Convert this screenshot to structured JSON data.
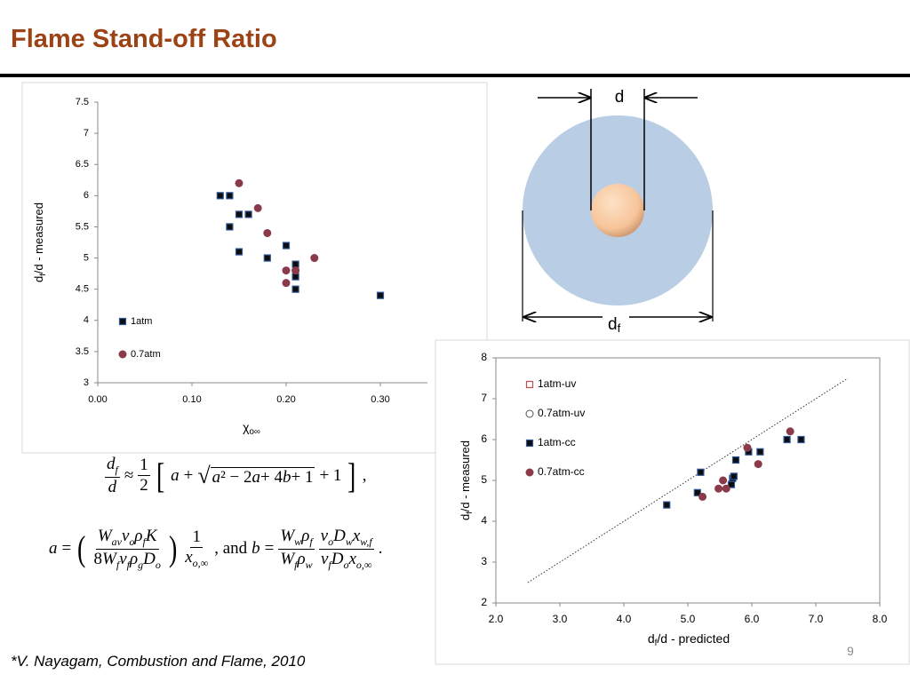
{
  "title": "Flame Stand-off Ratio",
  "footnote": "*V. Nayagam, Combustion and Flame, 2010",
  "page_number": "9",
  "diagram": {
    "d_label": "d",
    "df_label": [
      "d",
      "f"
    ]
  },
  "equations": [
    [
      {
        "frac": {
          "num": [
            {
              "v": "d",
              "s": "f"
            }
          ],
          "den": [
            {
              "v": "d"
            }
          ]
        }
      },
      {
        "t": "≈"
      },
      {
        "frac": {
          "num": [
            {
              "t": "1"
            }
          ],
          "den": [
            {
              "t": "2"
            }
          ]
        }
      },
      {
        "big": "["
      },
      {
        "v": "a"
      },
      {
        "t": "+"
      },
      {
        "sqrt": [
          {
            "v": "a"
          },
          {
            "t": "² − 2"
          },
          {
            "v": "a"
          },
          {
            "t": " + 4"
          },
          {
            "v": "b"
          },
          {
            "t": " + 1"
          }
        ]
      },
      {
        "t": "+ 1"
      },
      {
        "big": "]"
      },
      {
        "t": ","
      }
    ],
    [
      {
        "v": "a"
      },
      {
        "t": "="
      },
      {
        "big": "("
      },
      {
        "frac": {
          "num": [
            {
              "v": "W",
              "s": "av"
            },
            {
              "v": "ν",
              "s": "o"
            },
            {
              "v": "ρ",
              "s": "f"
            },
            {
              "v": "K"
            }
          ],
          "den": [
            {
              "t": "8"
            },
            {
              "v": "W",
              "s": "f"
            },
            {
              "v": "ν",
              "s": "f"
            },
            {
              "v": "ρ",
              "s": "g"
            },
            {
              "v": "D",
              "s": "o"
            }
          ]
        }
      },
      {
        "big": ")"
      },
      {
        "frac": {
          "num": [
            {
              "t": "1"
            }
          ],
          "den": [
            {
              "v": "x",
              "s": "o,∞"
            }
          ]
        }
      },
      {
        "t": ", and"
      },
      {
        "v": "b"
      },
      {
        "t": "="
      },
      {
        "frac": {
          "num": [
            {
              "v": "W",
              "s": "w"
            },
            {
              "v": "ρ",
              "s": "f"
            }
          ],
          "den": [
            {
              "v": "W",
              "s": "f"
            },
            {
              "v": "ρ",
              "s": "w"
            }
          ]
        }
      },
      {
        "frac": {
          "num": [
            {
              "v": "ν",
              "s": "o"
            },
            {
              "v": "D",
              "s": "w"
            },
            {
              "v": "x",
              "s": "w,f"
            }
          ],
          "den": [
            {
              "v": "ν",
              "s": "f"
            },
            {
              "v": "D",
              "s": "o"
            },
            {
              "v": "x",
              "s": "o,∞"
            }
          ]
        }
      },
      {
        "t": "."
      }
    ]
  ],
  "chart_data": [
    {
      "type": "scatter",
      "xlabel": [
        "χ",
        "o∞"
      ],
      "ylabel": [
        "d",
        "f",
        "/d - measured"
      ],
      "xlim": [
        0,
        0.35
      ],
      "ylim": [
        3,
        7.5
      ],
      "xticks": [
        {
          "value": 0,
          "label": "0.00"
        },
        {
          "value": 0.1,
          "label": "0.10"
        },
        {
          "value": 0.2,
          "label": "0.20"
        },
        {
          "value": 0.3,
          "label": "0.30"
        }
      ],
      "yticks": [
        3,
        3.5,
        4,
        4.5,
        5,
        5.5,
        6,
        6.5,
        7,
        7.5
      ],
      "series": [
        {
          "name": "1atm",
          "color": "#0d0d0d",
          "marker": "square",
          "filled": true,
          "x": [
            0.13,
            0.14,
            0.14,
            0.15,
            0.16,
            0.15,
            0.18,
            0.2,
            0.21,
            0.21,
            0.21,
            0.3
          ],
          "values": [
            6.0,
            6.0,
            5.5,
            5.7,
            5.7,
            5.1,
            5.0,
            5.2,
            4.9,
            4.7,
            4.5,
            4.4
          ]
        },
        {
          "name": "0.7atm",
          "color": "#8b3a4a",
          "marker": "circle",
          "filled": true,
          "x": [
            0.15,
            0.17,
            0.18,
            0.2,
            0.21,
            0.2,
            0.23
          ],
          "values": [
            6.2,
            5.8,
            5.4,
            4.8,
            4.8,
            4.6,
            5.0
          ]
        }
      ]
    },
    {
      "type": "scatter",
      "xlabel": [
        "d",
        "f",
        "/d - predicted"
      ],
      "ylabel": [
        "d",
        "f",
        "/d - measured"
      ],
      "xlim": [
        2,
        8
      ],
      "ylim": [
        2,
        8
      ],
      "xticks": [
        {
          "value": 2,
          "label": "2.0"
        },
        {
          "value": 3,
          "label": "3.0"
        },
        {
          "value": 4,
          "label": "4.0"
        },
        {
          "value": 5,
          "label": "5.0"
        },
        {
          "value": 6,
          "label": "6.0"
        },
        {
          "value": 7,
          "label": "7.0"
        },
        {
          "value": 8,
          "label": "8.0"
        }
      ],
      "yticks": [
        2,
        3,
        4,
        5,
        6,
        7,
        8
      ],
      "diagonal": {
        "x": [
          2.5,
          7.5
        ],
        "y": [
          2.5,
          7.5
        ]
      },
      "series": [
        {
          "name": "1atm-uv",
          "color": "#c0504d",
          "marker": "square",
          "filled": false,
          "x": [],
          "values": []
        },
        {
          "name": "0.7atm-uv",
          "color": "#555555",
          "marker": "circle",
          "filled": false,
          "x": [],
          "values": []
        },
        {
          "name": "1atm-cc",
          "color": "#0d0d0d",
          "marker": "square",
          "filled": true,
          "x": [
            4.67,
            5.15,
            5.2,
            5.68,
            5.7,
            5.72,
            5.75,
            5.95,
            6.13,
            6.55,
            6.77
          ],
          "values": [
            4.4,
            4.7,
            5.2,
            4.9,
            5.05,
            5.1,
            5.5,
            5.7,
            5.7,
            6.0,
            6.0
          ]
        },
        {
          "name": "0.7atm-cc",
          "color": "#8b3a4a",
          "marker": "circle",
          "filled": true,
          "x": [
            5.23,
            5.48,
            5.55,
            5.6,
            5.93,
            6.1,
            6.6
          ],
          "values": [
            4.6,
            4.8,
            5.0,
            4.8,
            5.8,
            5.4,
            6.2
          ]
        }
      ]
    }
  ]
}
